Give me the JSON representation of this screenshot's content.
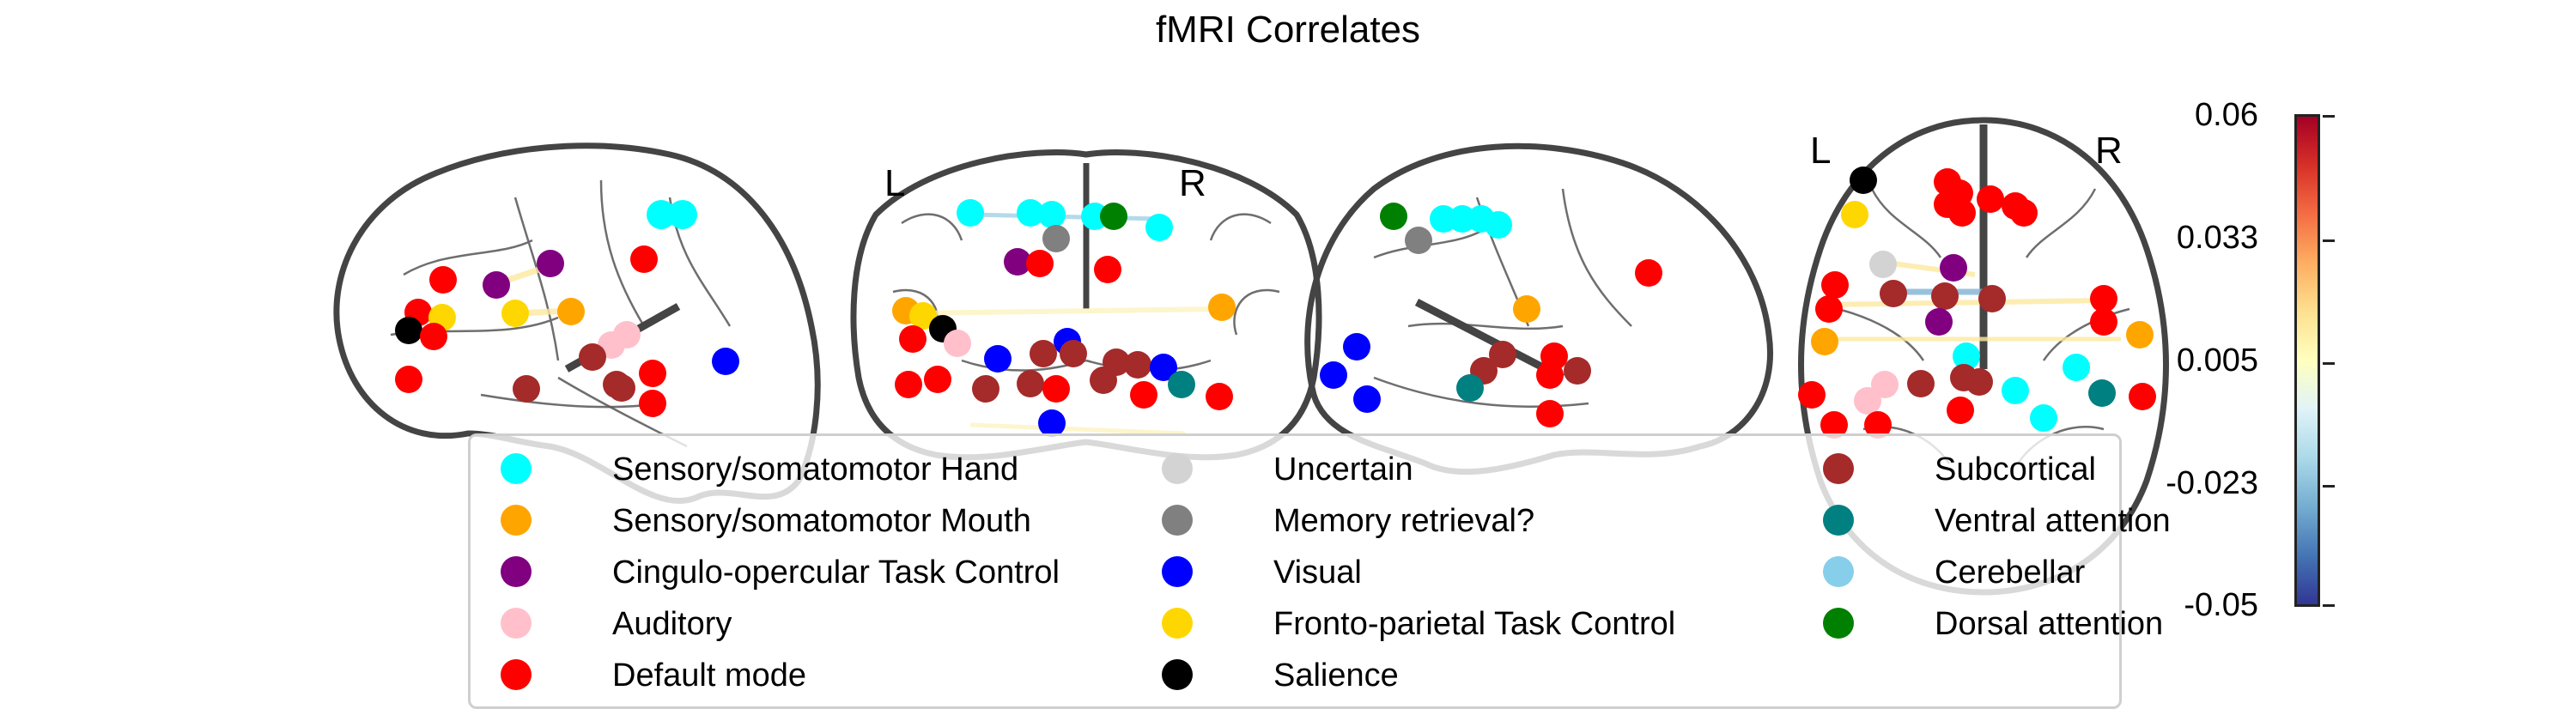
{
  "title": "fMRI Correlates",
  "side_labels": {
    "left": "L",
    "right": "R"
  },
  "colorbar": {
    "ticks": [
      "0.06",
      "0.033",
      "0.005",
      "-0.023",
      "-0.05"
    ],
    "max": 0.06,
    "min": -0.05,
    "colormap": "RdYlBu_r"
  },
  "legend": [
    {
      "label": "Sensory/somatomotor Hand",
      "color": "#00ffff"
    },
    {
      "label": "Sensory/somatomotor Mouth",
      "color": "#ffa500"
    },
    {
      "label": "Cingulo-opercular Task Control",
      "color": "#800080"
    },
    {
      "label": "Auditory",
      "color": "#ffc0cb"
    },
    {
      "label": "Default mode",
      "color": "#ff0000"
    },
    {
      "label": "Uncertain",
      "color": "#d3d3d3"
    },
    {
      "label": "Memory retrieval?",
      "color": "#808080"
    },
    {
      "label": "Visual",
      "color": "#0000ff"
    },
    {
      "label": "Fronto-parietal Task Control",
      "color": "#ffd700"
    },
    {
      "label": "Salience",
      "color": "#000000"
    },
    {
      "label": "Subcortical",
      "color": "#a52a2a"
    },
    {
      "label": "Ventral attention",
      "color": "#008080"
    },
    {
      "label": "Cerebellar",
      "color": "#87ceeb"
    },
    {
      "label": "Dorsal attention",
      "color": "#008000"
    }
  ]
}
